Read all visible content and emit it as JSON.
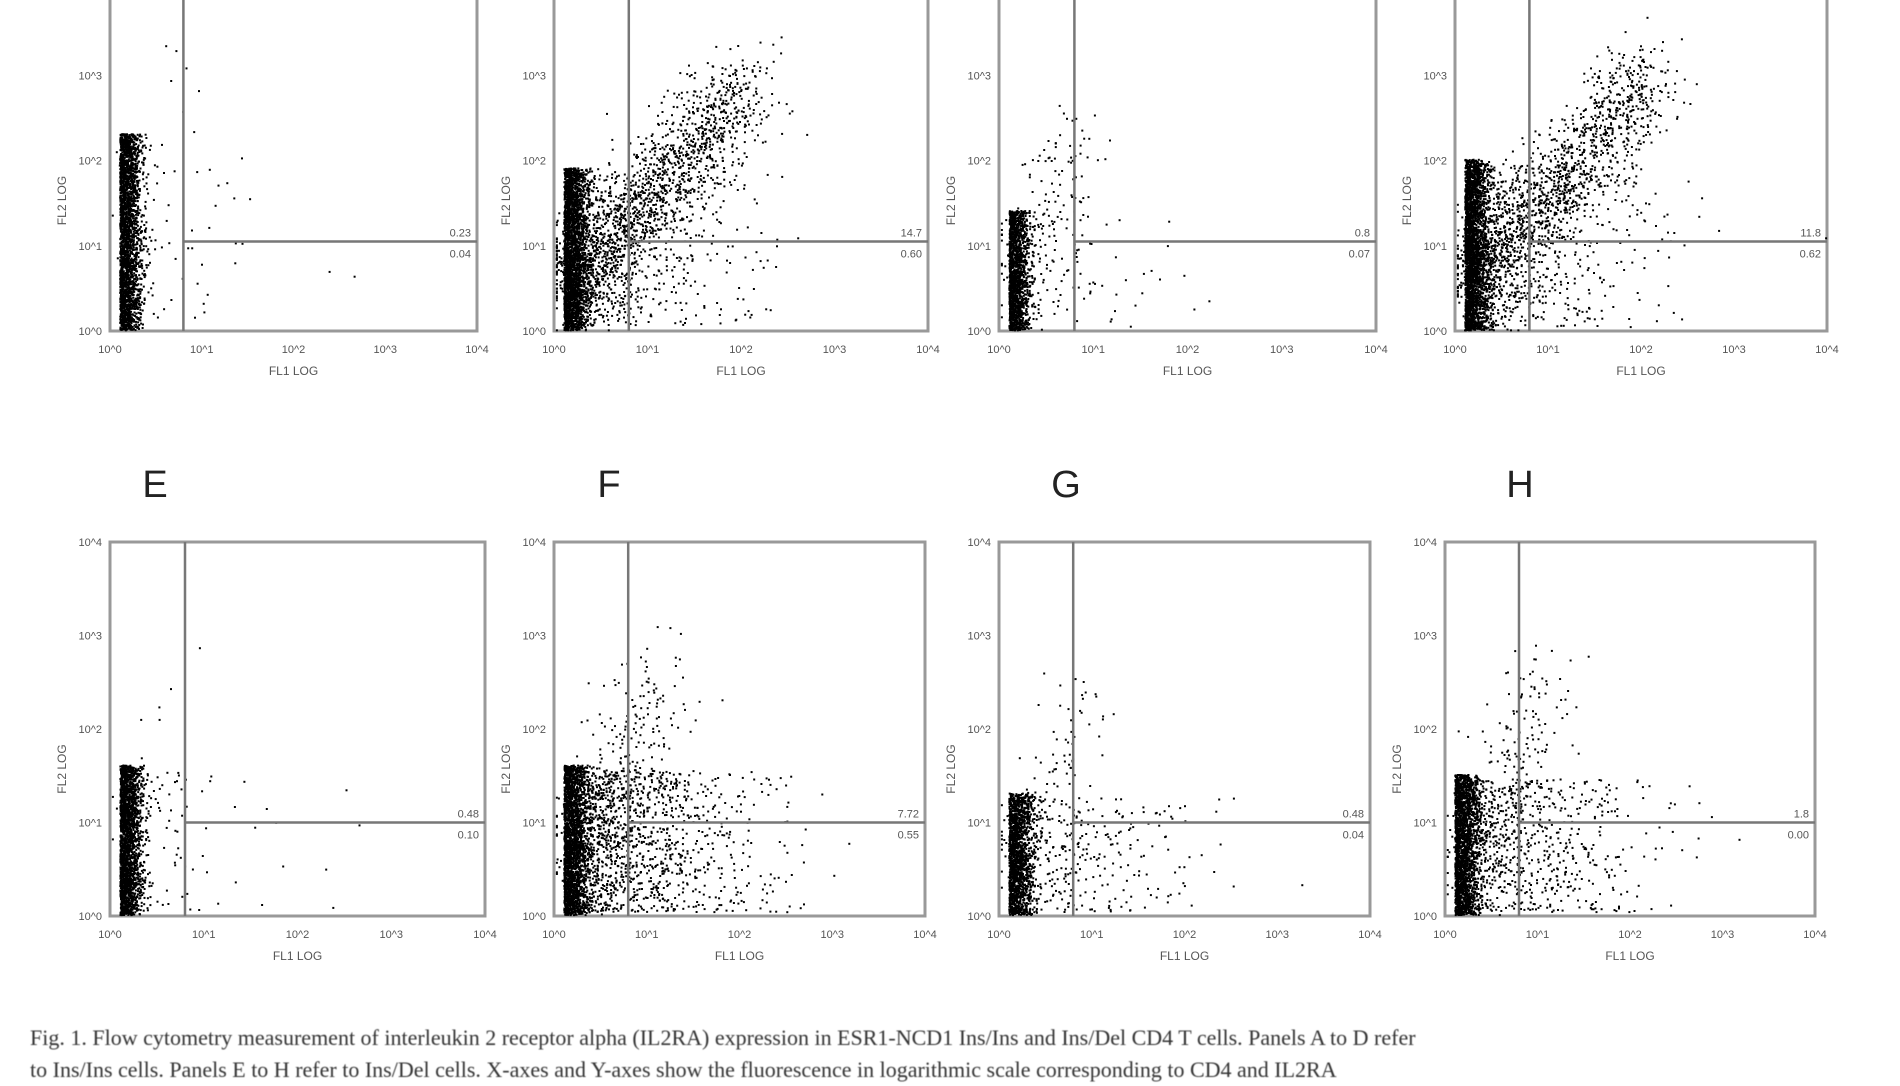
{
  "chart_data": {
    "type": "scatter",
    "x_axis": {
      "label": "FL1 LOG",
      "scale": "log",
      "range": [
        1,
        10000
      ],
      "ticks": [
        "10^0",
        "10^1",
        "10^2",
        "10^3",
        "10^4"
      ]
    },
    "y_axis": {
      "label": "FL2 LOG",
      "scale": "log",
      "range": [
        1,
        10000
      ],
      "ticks": [
        "10^0",
        "10^1",
        "10^2",
        "10^3",
        "10^4"
      ]
    },
    "panels": [
      {
        "label": "",
        "upper_right": "0.23",
        "lower_right": "0.04"
      },
      {
        "label": "",
        "upper_right": "14.7",
        "lower_right": "0.60"
      },
      {
        "label": "",
        "upper_right": "0.8",
        "lower_right": "0.07"
      },
      {
        "label": "",
        "upper_right": "11.8",
        "lower_right": "0.62"
      },
      {
        "label": "E",
        "upper_right": "0.48",
        "lower_right": "0.10"
      },
      {
        "label": "F",
        "upper_right": "7.72",
        "lower_right": "0.55"
      },
      {
        "label": "G",
        "upper_right": "0.48",
        "lower_right": "0.04"
      },
      {
        "label": "H",
        "upper_right": "1.8",
        "lower_right": "0.00"
      }
    ],
    "grid": false,
    "gates": "quadrant"
  },
  "caption": {
    "line1": "Fig. 1. Flow cytometry measurement of interleukin 2 receptor alpha (IL2RA) expression in ESR1-NCD1 Ins/Ins and Ins/Del CD4 T cells. Panels A to D refer",
    "line2": "to Ins/Ins cells. Panels E to H refer to Ins/Del cells. X-axes and Y-axes show the fluorescence in logarithmic scale corresponding to CD4 and IL2RA"
  }
}
